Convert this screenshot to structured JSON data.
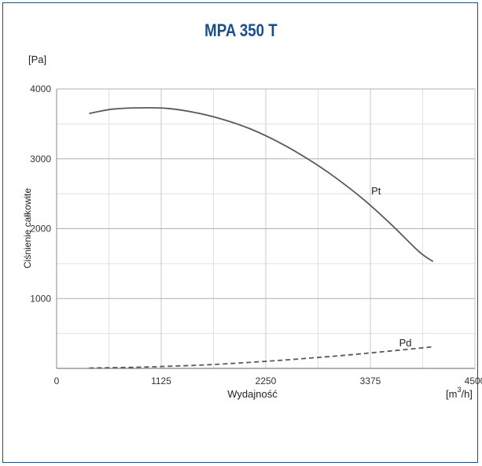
{
  "chart_data": {
    "type": "line",
    "title": "MPA 350 T",
    "xlabel": "Wydajność",
    "x_unit": "[m³/h]",
    "x_unit_base": "[m",
    "x_unit_sup": "3",
    "x_unit_tail": "/h]",
    "ylabel": "Ciśnienie całkowite",
    "y_unit": "[Pa]",
    "xlim": [
      0,
      4500
    ],
    "ylim": [
      0,
      4000
    ],
    "x_ticks": [
      0,
      1125,
      2250,
      3375,
      4500
    ],
    "y_ticks": [
      1000,
      2000,
      3000,
      4000
    ],
    "grid": true,
    "series": [
      {
        "name": "Pt",
        "style": "solid",
        "color": "#5a5a5a",
        "x": [
          350,
          600,
          900,
          1200,
          1500,
          1800,
          2100,
          2400,
          2700,
          3000,
          3300,
          3600,
          3900,
          4050
        ],
        "y": [
          3650,
          3710,
          3730,
          3720,
          3660,
          3560,
          3420,
          3230,
          3000,
          2730,
          2420,
          2060,
          1670,
          1530
        ]
      },
      {
        "name": "Pd",
        "style": "dashed",
        "color": "#5a5a5a",
        "x": [
          350,
          800,
          1200,
          1600,
          2000,
          2400,
          2800,
          3200,
          3600,
          4050
        ],
        "y": [
          5,
          15,
          30,
          50,
          80,
          115,
          155,
          200,
          250,
          310
        ]
      }
    ]
  }
}
